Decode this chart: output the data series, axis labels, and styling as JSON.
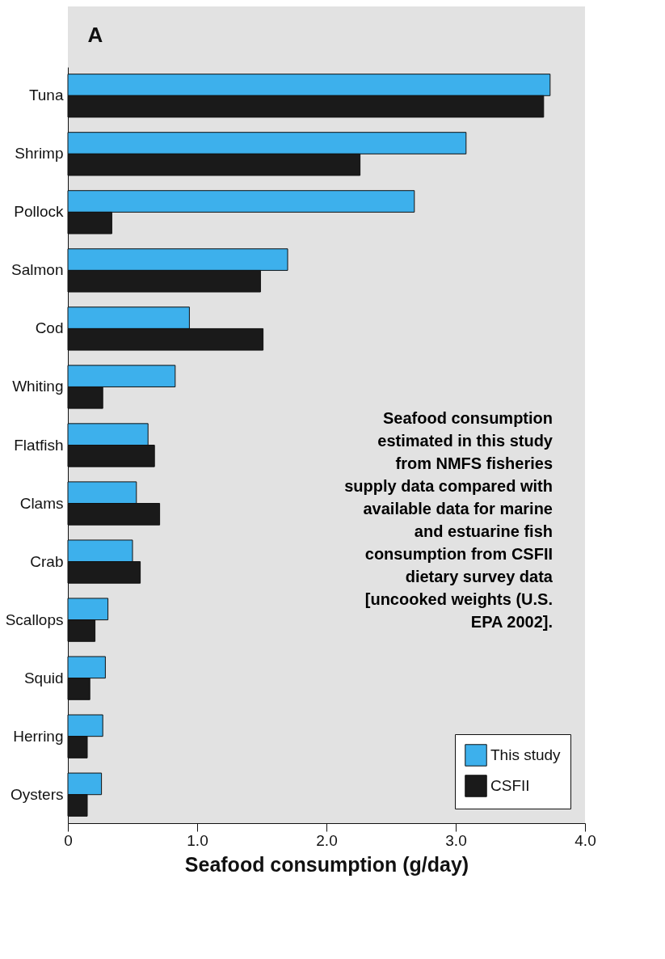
{
  "chart_data": {
    "type": "bar",
    "orientation": "horizontal",
    "xlabel": "Seafood consumption (g/day)",
    "categories": [
      "Tuna",
      "Shrimp",
      "Pollock",
      "Salmon",
      "Cod",
      "Whiting",
      "Flatfish",
      "Clams",
      "Crab",
      "Scallops",
      "Squid",
      "Herring",
      "Oysters"
    ],
    "series": [
      {
        "name": "This study",
        "color": "#3db0ec",
        "values": [
          3.73,
          3.08,
          2.68,
          1.7,
          0.94,
          0.83,
          0.62,
          0.53,
          0.5,
          0.31,
          0.29,
          0.27,
          0.26
        ]
      },
      {
        "name": "CSFII",
        "color": "#1a1a1a",
        "values": [
          3.68,
          2.26,
          0.34,
          1.49,
          1.51,
          0.27,
          0.67,
          0.71,
          0.56,
          0.21,
          0.17,
          0.15,
          0.15
        ]
      }
    ],
    "xlim": [
      0,
      4
    ],
    "xticks": [
      0,
      {
        "value": 1,
        "label": "1.0"
      },
      {
        "value": 2,
        "label": "2.0"
      },
      {
        "value": 3,
        "label": "3.0"
      },
      {
        "value": 4,
        "label": "4.0"
      }
    ],
    "annotations": [
      "A",
      "Seafood consumption estimated in this study from NMFS fisheries supply data compared with available data for marine and estuarine fish consumption from CSFII dietary survey data [uncooked weights (U.S. EPA 2002]."
    ],
    "legend": "bottom right",
    "grid": false
  }
}
